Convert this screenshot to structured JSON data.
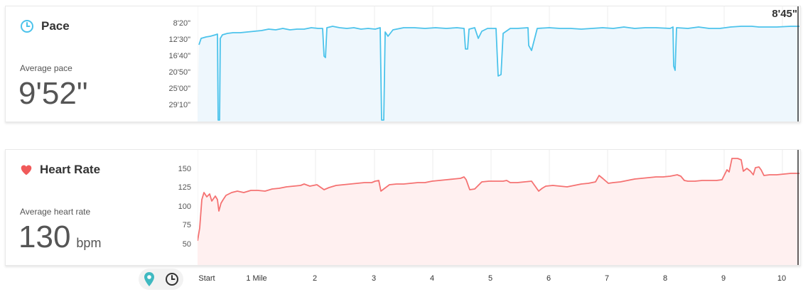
{
  "pace": {
    "title": "Pace",
    "avg_label": "Average pace",
    "avg_value": "9'52\"",
    "current_value": "8'45\"",
    "y_ticks": [
      "8'20\"",
      "12'30\"",
      "16'40\"",
      "20'50\"",
      "25'00\"",
      "29'10\""
    ],
    "colors": {
      "line": "#4cc3eb",
      "fill": "#eef7fd",
      "icon": "#4cc3eb"
    }
  },
  "heart_rate": {
    "title": "Heart Rate",
    "avg_label": "Average heart rate",
    "avg_value": "130",
    "avg_unit": "bpm",
    "y_ticks": [
      "150",
      "125",
      "100",
      "75",
      "50"
    ],
    "colors": {
      "line": "#f57272",
      "fill": "#fff0f0",
      "icon": "#f05a5a"
    }
  },
  "x_axis": {
    "labels": [
      "Start",
      "1 Mile",
      "2",
      "3",
      "4",
      "5",
      "6",
      "7",
      "8",
      "9",
      "10"
    ]
  },
  "toggle": {
    "options": [
      "map-pin-icon",
      "clock-icon"
    ],
    "active": "map-pin-icon",
    "active_color": "#3fb9c1"
  }
}
